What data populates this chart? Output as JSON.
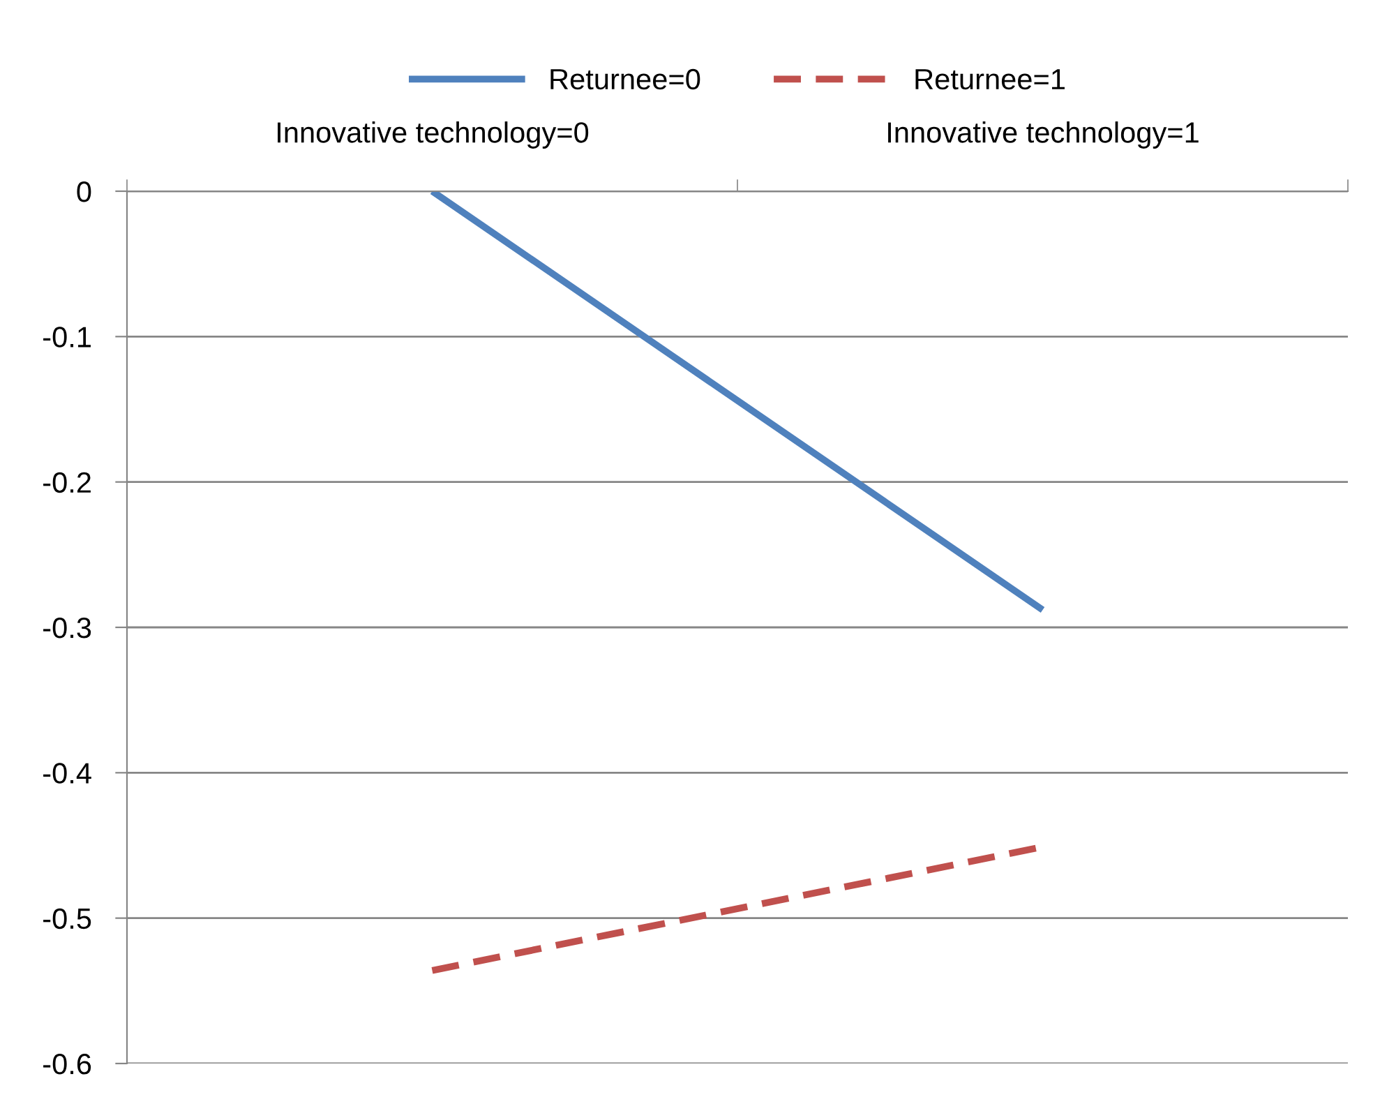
{
  "chart_data": {
    "type": "line",
    "categories": [
      "Innovative technology=0",
      "Innovative technology=1"
    ],
    "series": [
      {
        "name": "Returnee=0",
        "color": "#4f81bd",
        "values": [
          0,
          -0.288
        ],
        "line_style": "solid"
      },
      {
        "name": "Returnee=1",
        "color": "#c0504d",
        "values": [
          -0.536,
          -0.451
        ],
        "line_style": "dashed"
      }
    ],
    "ylim": [
      -0.6,
      0
    ],
    "yticks": [
      0,
      -0.1,
      -0.2,
      -0.3,
      -0.4,
      -0.5,
      -0.6
    ],
    "grid": "y",
    "legend": "top",
    "marker": "none"
  }
}
